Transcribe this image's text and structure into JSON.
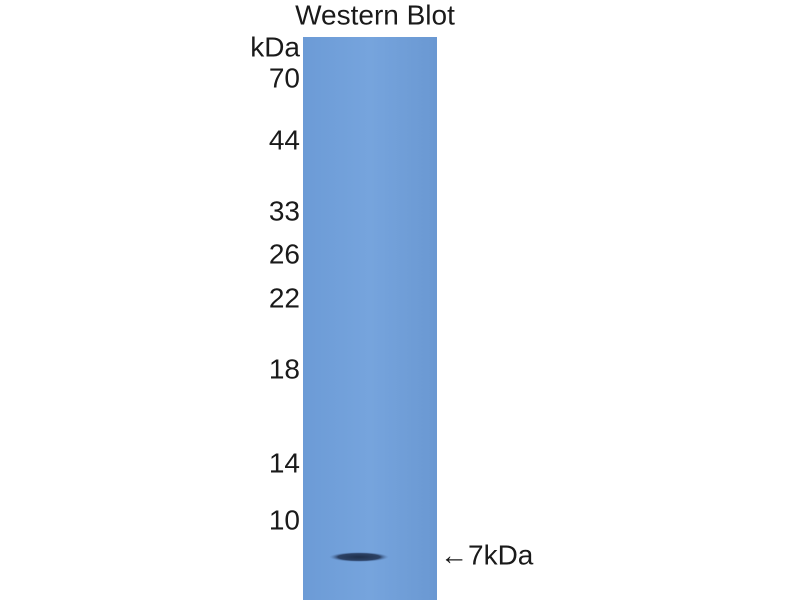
{
  "header": {
    "title": "Western Blot",
    "unit": "kDa"
  },
  "markers": [
    "70",
    "44",
    "33",
    "26",
    "22",
    "18",
    "14",
    "10"
  ],
  "band": {
    "label": "←7kDa"
  }
}
